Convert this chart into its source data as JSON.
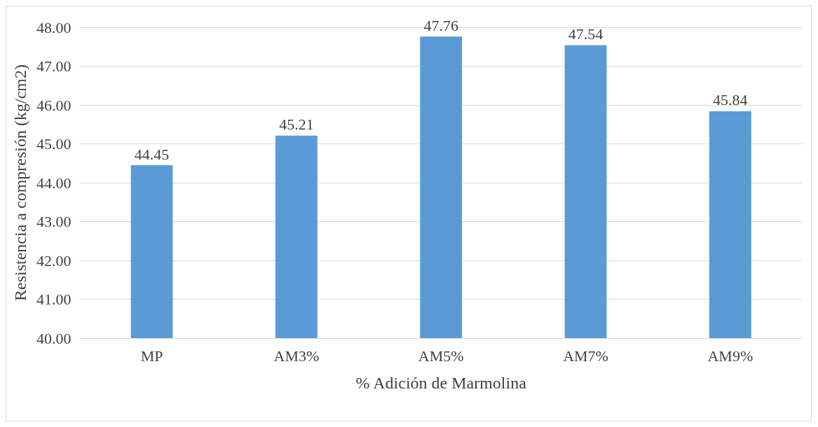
{
  "chart_data": {
    "type": "bar",
    "categories": [
      "MP",
      "AM3%",
      "AM5%",
      "AM7%",
      "AM9%"
    ],
    "values": [
      44.45,
      45.21,
      47.76,
      47.54,
      45.84
    ],
    "color": "#5b9bd5",
    "xlabel": "% Adición de Marmolina",
    "ylabel": "Resistencia a compresión (kg/cm2)",
    "ylim": [
      40,
      48
    ],
    "yticks": [
      {
        "value": 40,
        "label": "40.00"
      },
      {
        "value": 41,
        "label": "41.00"
      },
      {
        "value": 42,
        "label": "42.00"
      },
      {
        "value": 43,
        "label": "43.00"
      },
      {
        "value": 44,
        "label": "44.00"
      },
      {
        "value": 45,
        "label": "45.00"
      },
      {
        "value": 46,
        "label": "46.00"
      },
      {
        "value": 47,
        "label": "47.00"
      },
      {
        "value": 48,
        "label": "48.00"
      }
    ],
    "grid": true,
    "data_labels": true
  }
}
